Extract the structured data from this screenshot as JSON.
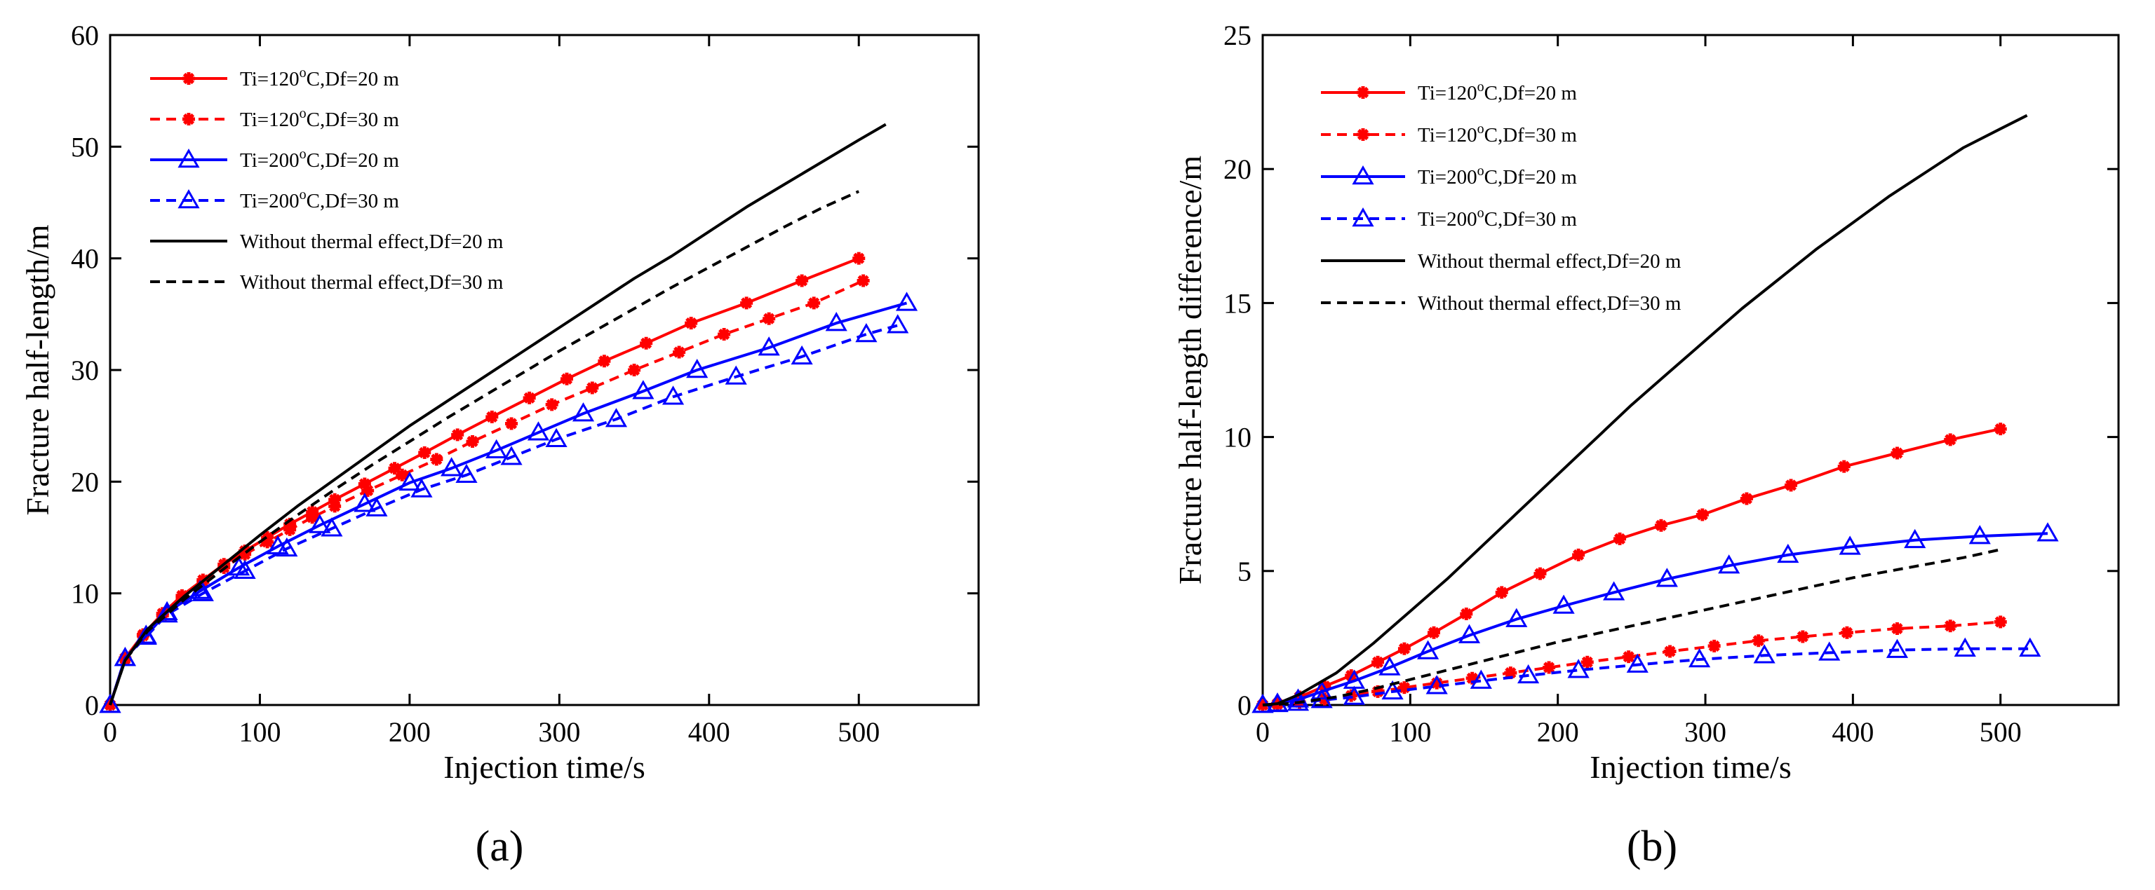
{
  "chart_data": [
    {
      "type": "line",
      "panel_label": "(a)",
      "xlabel": "Injection time/s",
      "ylabel": "Fracture half-length/m",
      "xlim": [
        0,
        580
      ],
      "ylim": [
        0,
        60
      ],
      "xticks": [
        0,
        100,
        200,
        300,
        400,
        500
      ],
      "yticks": [
        0,
        10,
        20,
        30,
        40,
        50,
        60
      ],
      "legend_position": "top-left",
      "series": [
        {
          "name": "Ti=120oC,Df=20 m",
          "label_main": "Ti=120",
          "label_sup": "o",
          "label_rest": "C,Df=20 m",
          "color": "#ff0000",
          "dash": "solid",
          "marker": "asterisk",
          "x": [
            0,
            10,
            22,
            35,
            48,
            62,
            76,
            90,
            105,
            120,
            135,
            150,
            170,
            190,
            210,
            232,
            255,
            280,
            305,
            330,
            358,
            388,
            425,
            462,
            500
          ],
          "y": [
            0,
            4.2,
            6.3,
            8.2,
            9.8,
            11.2,
            12.6,
            13.8,
            15.0,
            16.2,
            17.3,
            18.4,
            19.8,
            21.2,
            22.6,
            24.2,
            25.8,
            27.5,
            29.2,
            30.8,
            32.4,
            34.2,
            36.0,
            38.0,
            40.0
          ]
        },
        {
          "name": "Ti=120oC,Df=30 m",
          "label_main": "Ti=120",
          "label_sup": "o",
          "label_rest": "C,Df=30 m",
          "color": "#ff0000",
          "dash": "dashed",
          "marker": "asterisk",
          "x": [
            0,
            10,
            22,
            35,
            48,
            62,
            76,
            90,
            105,
            120,
            135,
            150,
            172,
            195,
            218,
            242,
            268,
            295,
            322,
            350,
            380,
            410,
            440,
            470,
            503
          ],
          "y": [
            0,
            4.1,
            6.2,
            8.0,
            9.6,
            11.0,
            12.3,
            13.5,
            14.6,
            15.7,
            16.8,
            17.8,
            19.2,
            20.6,
            22.0,
            23.6,
            25.2,
            26.9,
            28.4,
            30.0,
            31.6,
            33.2,
            34.6,
            36.0,
            38.0
          ]
        },
        {
          "name": "Ti=200oC,Df=20 m",
          "label_main": "Ti=200",
          "label_sup": "o",
          "label_rest": "C,Df=20 m",
          "color": "#0000ff",
          "dash": "solid",
          "marker": "triangle",
          "x": [
            0,
            10,
            24,
            38,
            60,
            86,
            112,
            140,
            170,
            200,
            228,
            258,
            286,
            316,
            356,
            392,
            440,
            485,
            532
          ],
          "y": [
            0,
            4.2,
            6.2,
            8.3,
            10.2,
            12.3,
            14.2,
            16.1,
            18.0,
            19.9,
            21.2,
            22.8,
            24.4,
            26.1,
            28.1,
            30.0,
            32.0,
            34.2,
            36.0
          ]
        },
        {
          "name": "Ti=200oC,Df=30 m",
          "label_main": "Ti=200",
          "label_sup": "o",
          "label_rest": "C,Df=30 m",
          "color": "#0000ff",
          "dash": "dashed",
          "marker": "triangle",
          "x": [
            0,
            10,
            24,
            38,
            62,
            90,
            118,
            148,
            178,
            208,
            238,
            268,
            298,
            338,
            376,
            418,
            462,
            505,
            526
          ],
          "y": [
            0,
            4.2,
            6.1,
            8.1,
            10.0,
            12.0,
            14.0,
            15.8,
            17.6,
            19.3,
            20.6,
            22.2,
            23.8,
            25.6,
            27.6,
            29.4,
            31.2,
            33.2,
            34.0
          ]
        },
        {
          "name": "Without thermal effect,Df=20 m",
          "label_main": "Without thermal effect,Df=20 m",
          "color": "#000000",
          "dash": "solid",
          "marker": "none",
          "x": [
            0,
            10,
            25,
            50,
            75,
            100,
            125,
            150,
            175,
            200,
            225,
            250,
            275,
            300,
            325,
            350,
            375,
            400,
            425,
            450,
            475,
            500,
            518
          ],
          "y": [
            0,
            4.0,
            6.8,
            9.8,
            12.5,
            15.2,
            17.8,
            20.2,
            22.6,
            25.0,
            27.2,
            29.4,
            31.6,
            33.8,
            36.0,
            38.2,
            40.2,
            42.4,
            44.6,
            46.6,
            48.6,
            50.6,
            52.0
          ]
        },
        {
          "name": "Without thermal effect,Df=30 m",
          "label_main": "Without thermal effect,Df=30 m",
          "color": "#000000",
          "dash": "dashed",
          "marker": "none",
          "x": [
            0,
            10,
            25,
            50,
            75,
            100,
            125,
            150,
            175,
            200,
            225,
            250,
            275,
            300,
            325,
            350,
            375,
            400,
            425,
            450,
            475,
            500
          ],
          "y": [
            0,
            4.0,
            6.6,
            9.5,
            12.1,
            14.6,
            17.0,
            19.3,
            21.5,
            23.6,
            25.7,
            27.7,
            29.7,
            31.7,
            33.6,
            35.5,
            37.4,
            39.2,
            41.0,
            42.8,
            44.5,
            46.0
          ]
        }
      ]
    },
    {
      "type": "line",
      "panel_label": "(b)",
      "xlabel": "Injection time/s",
      "ylabel": "Fracture half-length difference/m",
      "xlim": [
        0,
        580
      ],
      "ylim": [
        0,
        25
      ],
      "xticks": [
        0,
        100,
        200,
        300,
        400,
        500
      ],
      "yticks": [
        0,
        5,
        10,
        15,
        20,
        25
      ],
      "legend_position": "top-left",
      "series": [
        {
          "name": "Ti=120oC,Df=20 m",
          "label_main": "Ti=120",
          "label_sup": "o",
          "label_rest": "C,Df=20 m",
          "color": "#ff0000",
          "dash": "solid",
          "marker": "asterisk",
          "x": [
            0,
            10,
            25,
            42,
            60,
            78,
            96,
            116,
            138,
            162,
            188,
            214,
            242,
            270,
            298,
            328,
            358,
            394,
            430,
            466,
            500
          ],
          "y": [
            0,
            0.05,
            0.3,
            0.7,
            1.1,
            1.6,
            2.1,
            2.7,
            3.4,
            4.2,
            4.9,
            5.6,
            6.2,
            6.7,
            7.1,
            7.7,
            8.2,
            8.9,
            9.4,
            9.9,
            10.3
          ]
        },
        {
          "name": "Ti=120oC,Df=30 m",
          "label_main": "Ti=120",
          "label_sup": "o",
          "label_rest": "C,Df=30 m",
          "color": "#ff0000",
          "dash": "dashed",
          "marker": "asterisk",
          "x": [
            0,
            10,
            25,
            42,
            60,
            78,
            96,
            118,
            142,
            168,
            194,
            220,
            248,
            276,
            306,
            336,
            366,
            396,
            430,
            466,
            500
          ],
          "y": [
            0,
            0.02,
            0.1,
            0.22,
            0.35,
            0.5,
            0.65,
            0.82,
            1.0,
            1.2,
            1.4,
            1.6,
            1.8,
            2.0,
            2.2,
            2.4,
            2.55,
            2.7,
            2.85,
            2.95,
            3.1
          ]
        },
        {
          "name": "Ti=200oC,Df=20 m",
          "label_main": "Ti=200",
          "label_sup": "o",
          "label_rest": "C,Df=20 m",
          "color": "#0000ff",
          "dash": "solid",
          "marker": "triangle",
          "x": [
            0,
            10,
            24,
            40,
            62,
            86,
            112,
            140,
            172,
            204,
            238,
            274,
            316,
            356,
            398,
            442,
            486,
            532
          ],
          "y": [
            0,
            0.05,
            0.2,
            0.5,
            0.9,
            1.4,
            2.0,
            2.6,
            3.2,
            3.7,
            4.2,
            4.7,
            5.2,
            5.6,
            5.9,
            6.15,
            6.3,
            6.4
          ]
        },
        {
          "name": "Ti=200oC,Df=30 m",
          "label_main": "Ti=200",
          "label_sup": "o",
          "label_rest": "C,Df=30 m",
          "color": "#0000ff",
          "dash": "dashed",
          "marker": "triangle",
          "x": [
            0,
            10,
            24,
            40,
            62,
            88,
            118,
            148,
            180,
            214,
            254,
            296,
            340,
            384,
            430,
            476,
            520
          ],
          "y": [
            0,
            0.03,
            0.08,
            0.18,
            0.3,
            0.5,
            0.7,
            0.9,
            1.1,
            1.3,
            1.5,
            1.7,
            1.85,
            1.95,
            2.05,
            2.1,
            2.1
          ]
        },
        {
          "name": "Without thermal effect,Df=20 m",
          "label_main": "Without thermal effect,Df=20 m",
          "color": "#000000",
          "dash": "solid",
          "marker": "none",
          "x": [
            0,
            10,
            25,
            50,
            75,
            100,
            125,
            150,
            175,
            200,
            225,
            250,
            275,
            300,
            325,
            350,
            375,
            400,
            425,
            450,
            475,
            500,
            518
          ],
          "y": [
            0,
            0.05,
            0.4,
            1.2,
            2.3,
            3.5,
            4.7,
            6.0,
            7.3,
            8.6,
            9.9,
            11.2,
            12.4,
            13.6,
            14.8,
            15.9,
            17.0,
            18.0,
            19.0,
            19.9,
            20.8,
            21.5,
            22.0
          ]
        },
        {
          "name": "Without thermal effect,Df=30 m",
          "label_main": "Without thermal effect,Df=30 m",
          "color": "#000000",
          "dash": "dashed",
          "marker": "none",
          "x": [
            0,
            10,
            25,
            50,
            75,
            100,
            125,
            150,
            175,
            200,
            225,
            250,
            275,
            300,
            325,
            350,
            375,
            400,
            425,
            450,
            475,
            500
          ],
          "y": [
            0,
            0.02,
            0.1,
            0.3,
            0.6,
            0.95,
            1.3,
            1.65,
            2.0,
            2.35,
            2.65,
            2.95,
            3.25,
            3.55,
            3.85,
            4.15,
            4.45,
            4.75,
            5.0,
            5.25,
            5.5,
            5.8
          ]
        }
      ]
    }
  ]
}
